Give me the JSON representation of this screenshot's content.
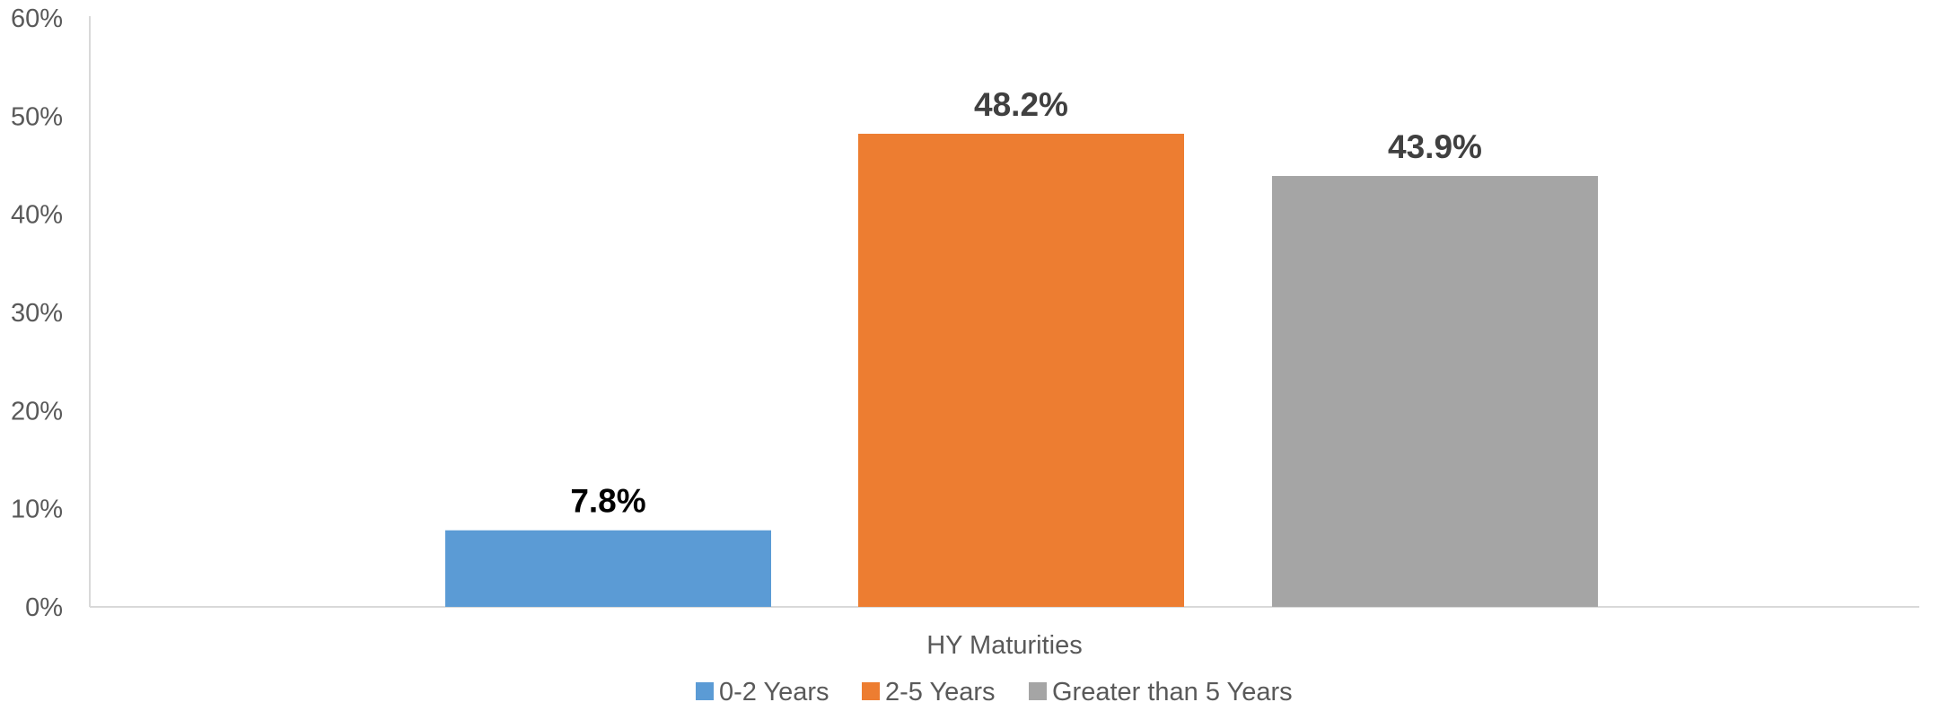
{
  "chart_data": {
    "type": "bar",
    "categories": [
      "HY Maturities"
    ],
    "series": [
      {
        "name": "0-2 Years",
        "values": [
          7.8
        ],
        "color": "#5B9BD5",
        "label": "7.8%",
        "label_color": "#000000"
      },
      {
        "name": "2-5 Years",
        "values": [
          48.2
        ],
        "color": "#ED7D31",
        "label": "48.2%",
        "label_color": "#404040"
      },
      {
        "name": "Greater than 5 Years",
        "values": [
          43.9
        ],
        "color": "#A5A5A5",
        "label": "43.9%",
        "label_color": "#404040"
      }
    ],
    "title": "",
    "xlabel": "",
    "ylabel": "",
    "ylim": [
      0,
      60
    ],
    "yticks": [
      0,
      10,
      20,
      30,
      40,
      50,
      60
    ],
    "ytick_labels": [
      "0%",
      "10%",
      "20%",
      "30%",
      "40%",
      "50%",
      "60%"
    ],
    "grid": false,
    "legend_position": "bottom",
    "axis_color": "#D9D9D9"
  }
}
